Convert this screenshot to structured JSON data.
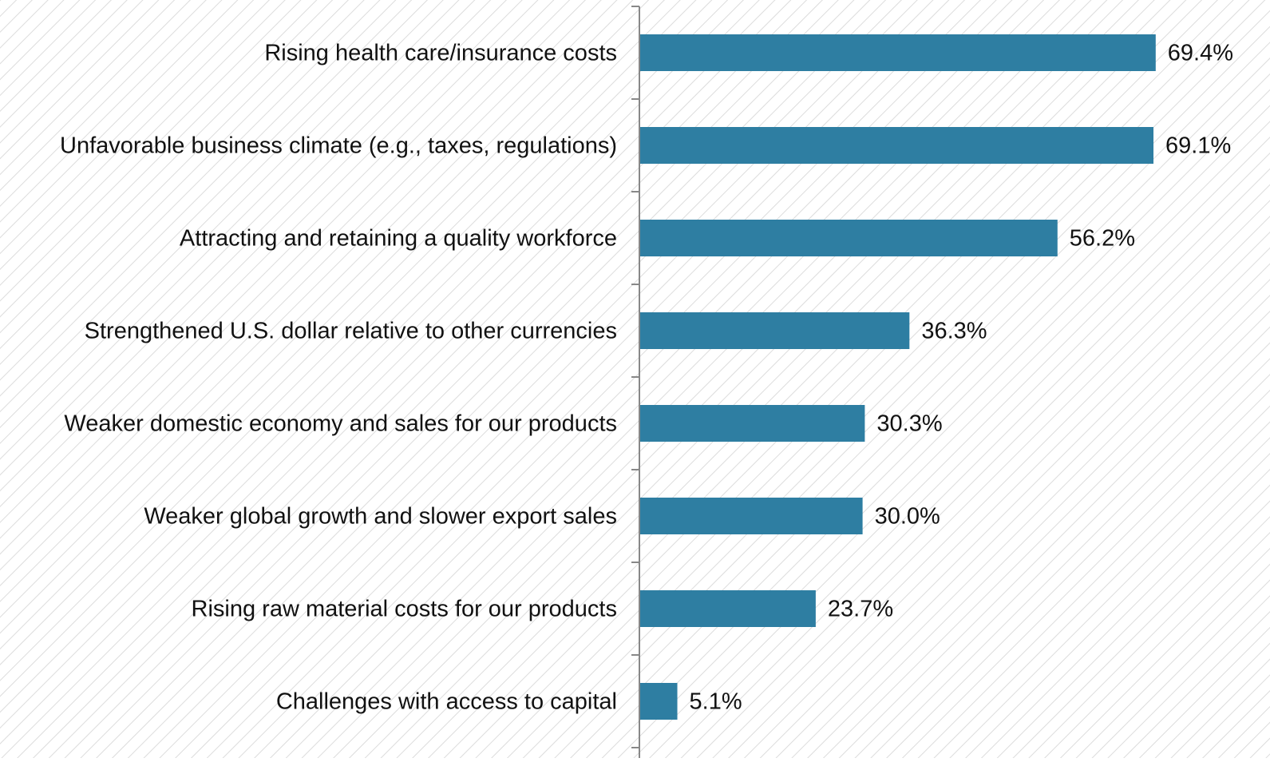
{
  "chart_data": {
    "type": "bar",
    "orientation": "horizontal",
    "categories": [
      "Rising health care/insurance costs",
      "Unfavorable business climate (e.g., taxes, regulations)",
      "Attracting and retaining a quality workforce",
      "Strengthened U.S. dollar relative to other currencies",
      "Weaker domestic economy and sales for our products",
      "Weaker global growth and slower export sales",
      "Rising raw material costs for our products",
      "Challenges with access to capital"
    ],
    "values": [
      69.4,
      69.1,
      56.2,
      36.3,
      30.3,
      30.0,
      23.7,
      5.1
    ],
    "value_labels": [
      "69.4%",
      "69.1%",
      "56.2%",
      "36.3%",
      "30.3%",
      "30.0%",
      "23.7%",
      "5.1%"
    ],
    "color": "#2e7ea2"
  }
}
